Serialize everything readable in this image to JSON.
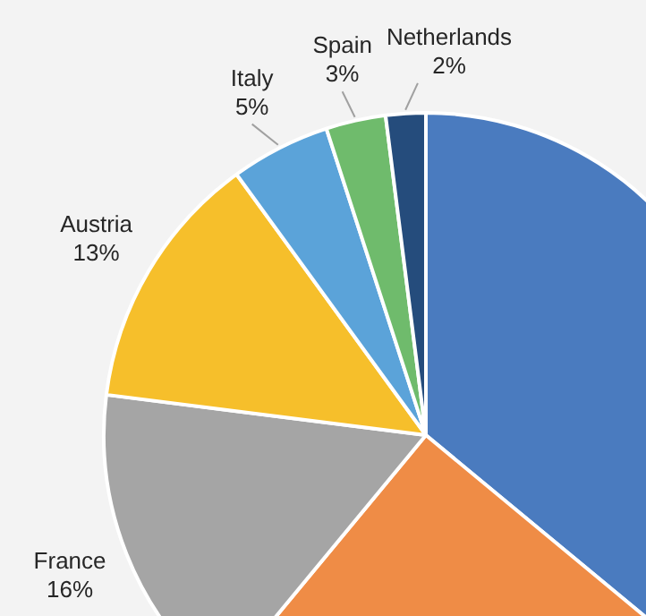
{
  "chart_data": {
    "type": "pie",
    "categories": [
      null,
      null,
      "France",
      "Austria",
      "Italy",
      "Spain",
      "Netherlands"
    ],
    "values": [
      36,
      25,
      16,
      13,
      5,
      3,
      2
    ],
    "value_labels": [
      null,
      null,
      "16%",
      "13%",
      "5%",
      "3%",
      "2%"
    ],
    "colors": [
      "#4a7bbf",
      "#ef8c46",
      "#a5a5a5",
      "#f6bf2b",
      "#5ba3d9",
      "#6fbb6c",
      "#254c7c"
    ],
    "legend": false
  }
}
